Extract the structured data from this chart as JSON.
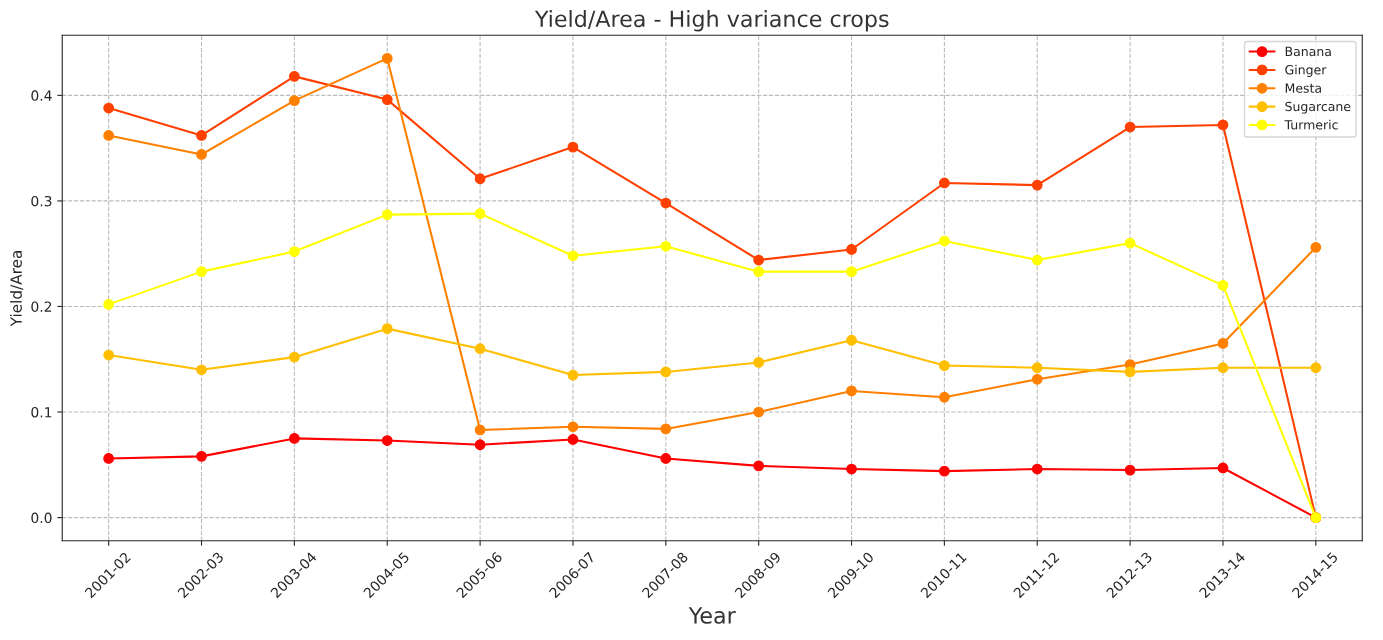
{
  "chart_data": {
    "type": "line",
    "title": "Yield/Area - High variance crops",
    "xlabel": "Year",
    "ylabel": "Yield/Area",
    "categories": [
      "2001-02",
      "2002-03",
      "2003-04",
      "2004-05",
      "2005-06",
      "2006-07",
      "2007-08",
      "2008-09",
      "2009-10",
      "2010-11",
      "2011-12",
      "2012-13",
      "2013-14",
      "2014-15"
    ],
    "series": [
      {
        "name": "Banana",
        "color": "#ff0000",
        "values": [
          0.056,
          0.058,
          0.075,
          0.073,
          0.069,
          0.074,
          0.056,
          0.049,
          0.046,
          0.044,
          0.046,
          0.045,
          0.047,
          0.0
        ]
      },
      {
        "name": "Ginger",
        "color": "#ff4000",
        "values": [
          0.388,
          0.362,
          0.418,
          0.396,
          0.321,
          0.351,
          0.298,
          0.244,
          0.254,
          0.317,
          0.315,
          0.37,
          0.372,
          0.0
        ]
      },
      {
        "name": "Mesta",
        "color": "#ff8000",
        "values": [
          0.362,
          0.344,
          0.395,
          0.435,
          0.083,
          0.086,
          0.084,
          0.1,
          0.12,
          0.114,
          0.131,
          0.145,
          0.165,
          0.256
        ]
      },
      {
        "name": "Sugarcane",
        "color": "#ffbf00",
        "values": [
          0.154,
          0.14,
          0.152,
          0.179,
          0.16,
          0.135,
          0.138,
          0.147,
          0.168,
          0.144,
          0.142,
          0.138,
          0.142,
          0.142
        ]
      },
      {
        "name": "Turmeric",
        "color": "#ffff00",
        "values": [
          0.202,
          0.233,
          0.252,
          0.287,
          0.288,
          0.248,
          0.257,
          0.233,
          0.233,
          0.262,
          0.244,
          0.26,
          0.22,
          0.0
        ]
      }
    ],
    "ylim": [
      -0.022,
      0.457
    ],
    "yticks": [
      {
        "value": 0,
        "label": "0.0"
      },
      0.1,
      0.2,
      0.3,
      0.4
    ],
    "grid": true,
    "legend": "top right",
    "marker": "circle",
    "line_style": "solid"
  }
}
